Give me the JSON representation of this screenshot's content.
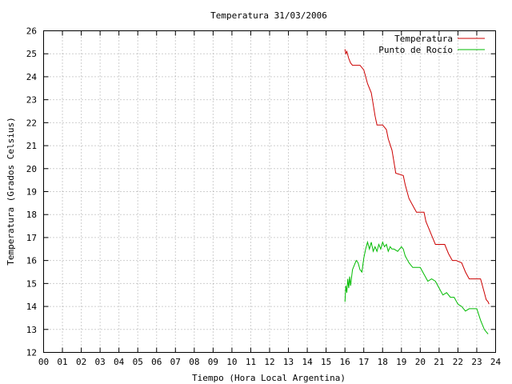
{
  "chart_data": {
    "type": "line",
    "title": "Temperatura 31/03/2006",
    "xlabel": "Tiempo (Hora Local Argentina)",
    "ylabel": "Temperatura (Grados Celsius)",
    "xlim": [
      0,
      24
    ],
    "ylim": [
      12,
      26
    ],
    "xticks": [
      "00",
      "01",
      "02",
      "03",
      "04",
      "05",
      "06",
      "07",
      "08",
      "09",
      "10",
      "11",
      "12",
      "13",
      "14",
      "15",
      "16",
      "17",
      "18",
      "19",
      "20",
      "21",
      "22",
      "23",
      "24"
    ],
    "yticks": [
      "12",
      "13",
      "14",
      "15",
      "16",
      "17",
      "18",
      "19",
      "20",
      "21",
      "22",
      "23",
      "24",
      "25",
      "26"
    ],
    "grid": true,
    "legend_position": "top-right",
    "series": [
      {
        "name": "Temperatura",
        "color": "#cc0000",
        "points": [
          [
            16.0,
            25.2
          ],
          [
            16.05,
            25.0
          ],
          [
            16.1,
            25.1
          ],
          [
            16.2,
            24.8
          ],
          [
            16.3,
            24.6
          ],
          [
            16.4,
            24.5
          ],
          [
            16.6,
            24.5
          ],
          [
            16.8,
            24.5
          ],
          [
            17.0,
            24.3
          ],
          [
            17.1,
            24.0
          ],
          [
            17.2,
            23.7
          ],
          [
            17.4,
            23.3
          ],
          [
            17.5,
            22.8
          ],
          [
            17.6,
            22.3
          ],
          [
            17.7,
            21.9
          ],
          [
            18.0,
            21.9
          ],
          [
            18.2,
            21.7
          ],
          [
            18.3,
            21.3
          ],
          [
            18.5,
            20.8
          ],
          [
            18.6,
            20.3
          ],
          [
            18.7,
            19.8
          ],
          [
            19.1,
            19.7
          ],
          [
            19.2,
            19.3
          ],
          [
            19.4,
            18.7
          ],
          [
            19.6,
            18.4
          ],
          [
            19.8,
            18.1
          ],
          [
            20.2,
            18.1
          ],
          [
            20.3,
            17.7
          ],
          [
            20.6,
            17.1
          ],
          [
            20.8,
            16.7
          ],
          [
            21.3,
            16.7
          ],
          [
            21.5,
            16.3
          ],
          [
            21.7,
            16.0
          ],
          [
            21.9,
            16.0
          ],
          [
            22.2,
            15.9
          ],
          [
            22.4,
            15.5
          ],
          [
            22.6,
            15.2
          ],
          [
            23.2,
            15.2
          ],
          [
            23.4,
            14.6
          ],
          [
            23.5,
            14.3
          ],
          [
            23.6,
            14.2
          ],
          [
            23.65,
            14.1
          ]
        ]
      },
      {
        "name": "Punto de Rocío",
        "color": "#00bb00",
        "points": [
          [
            16.0,
            14.2
          ],
          [
            16.05,
            14.9
          ],
          [
            16.1,
            14.6
          ],
          [
            16.15,
            15.2
          ],
          [
            16.2,
            14.8
          ],
          [
            16.25,
            15.3
          ],
          [
            16.3,
            14.9
          ],
          [
            16.4,
            15.6
          ],
          [
            16.5,
            15.8
          ],
          [
            16.6,
            16.0
          ],
          [
            16.7,
            15.9
          ],
          [
            16.8,
            15.6
          ],
          [
            16.9,
            15.5
          ],
          [
            17.0,
            16.1
          ],
          [
            17.1,
            16.5
          ],
          [
            17.2,
            16.8
          ],
          [
            17.3,
            16.5
          ],
          [
            17.4,
            16.8
          ],
          [
            17.5,
            16.4
          ],
          [
            17.6,
            16.6
          ],
          [
            17.7,
            16.4
          ],
          [
            17.8,
            16.7
          ],
          [
            17.9,
            16.5
          ],
          [
            18.0,
            16.8
          ],
          [
            18.1,
            16.6
          ],
          [
            18.2,
            16.7
          ],
          [
            18.3,
            16.4
          ],
          [
            18.4,
            16.6
          ],
          [
            18.5,
            16.5
          ],
          [
            18.6,
            16.5
          ],
          [
            18.8,
            16.4
          ],
          [
            19.0,
            16.6
          ],
          [
            19.1,
            16.5
          ],
          [
            19.2,
            16.2
          ],
          [
            19.4,
            15.9
          ],
          [
            19.6,
            15.7
          ],
          [
            20.0,
            15.7
          ],
          [
            20.2,
            15.4
          ],
          [
            20.4,
            15.1
          ],
          [
            20.6,
            15.2
          ],
          [
            20.8,
            15.1
          ],
          [
            21.0,
            14.8
          ],
          [
            21.2,
            14.5
          ],
          [
            21.4,
            14.6
          ],
          [
            21.6,
            14.4
          ],
          [
            21.8,
            14.4
          ],
          [
            22.0,
            14.1
          ],
          [
            22.2,
            14.0
          ],
          [
            22.4,
            13.8
          ],
          [
            22.6,
            13.9
          ],
          [
            23.0,
            13.9
          ],
          [
            23.2,
            13.4
          ],
          [
            23.4,
            13.0
          ],
          [
            23.5,
            12.9
          ],
          [
            23.6,
            12.8
          ]
        ]
      }
    ]
  }
}
